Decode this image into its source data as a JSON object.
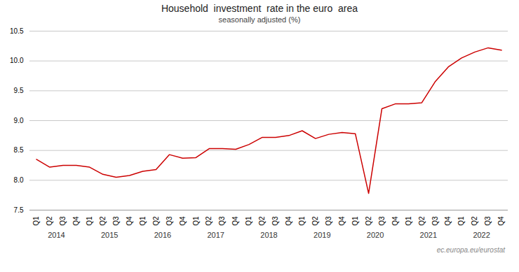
{
  "chart_data": {
    "type": "line",
    "title": "Household  investment  rate in the euro  area",
    "subtitle": "seasonally adjusted (%)",
    "caption": "ec.europa.eu/eurostat",
    "categories": [
      "Q1",
      "Q2",
      "Q3",
      "Q4",
      "Q1",
      "Q2",
      "Q3",
      "Q4",
      "Q1",
      "Q2",
      "Q3",
      "Q4",
      "Q1",
      "Q2",
      "Q3",
      "Q4",
      "Q1",
      "Q2",
      "Q3",
      "Q4",
      "Q1",
      "Q2",
      "Q3",
      "Q4",
      "Q1",
      "Q2",
      "Q3",
      "Q4",
      "Q1",
      "Q2",
      "Q3",
      "Q4",
      "Q1",
      "Q2",
      "Q3",
      "Q4"
    ],
    "years": [
      2014,
      2015,
      2016,
      2017,
      2018,
      2019,
      2020,
      2021,
      2022
    ],
    "values": [
      8.35,
      8.22,
      8.25,
      8.25,
      8.22,
      8.1,
      8.05,
      8.08,
      8.15,
      8.18,
      8.43,
      8.37,
      8.38,
      8.53,
      8.53,
      8.52,
      8.6,
      8.72,
      8.72,
      8.75,
      8.83,
      8.7,
      8.77,
      8.8,
      8.78,
      7.78,
      9.2,
      9.28,
      9.28,
      9.3,
      9.65,
      9.9,
      10.05,
      10.15,
      10.22,
      10.18
    ],
    "color": "#cc0000",
    "ylim": [
      7.5,
      10.5
    ],
    "yticks": [
      7.5,
      {
        "value": 8,
        "label": "8.0"
      },
      8.5,
      {
        "value": 9,
        "label": "9.0"
      },
      9.5,
      {
        "value": 10,
        "label": "10.0"
      },
      10.5
    ],
    "grid": true
  }
}
